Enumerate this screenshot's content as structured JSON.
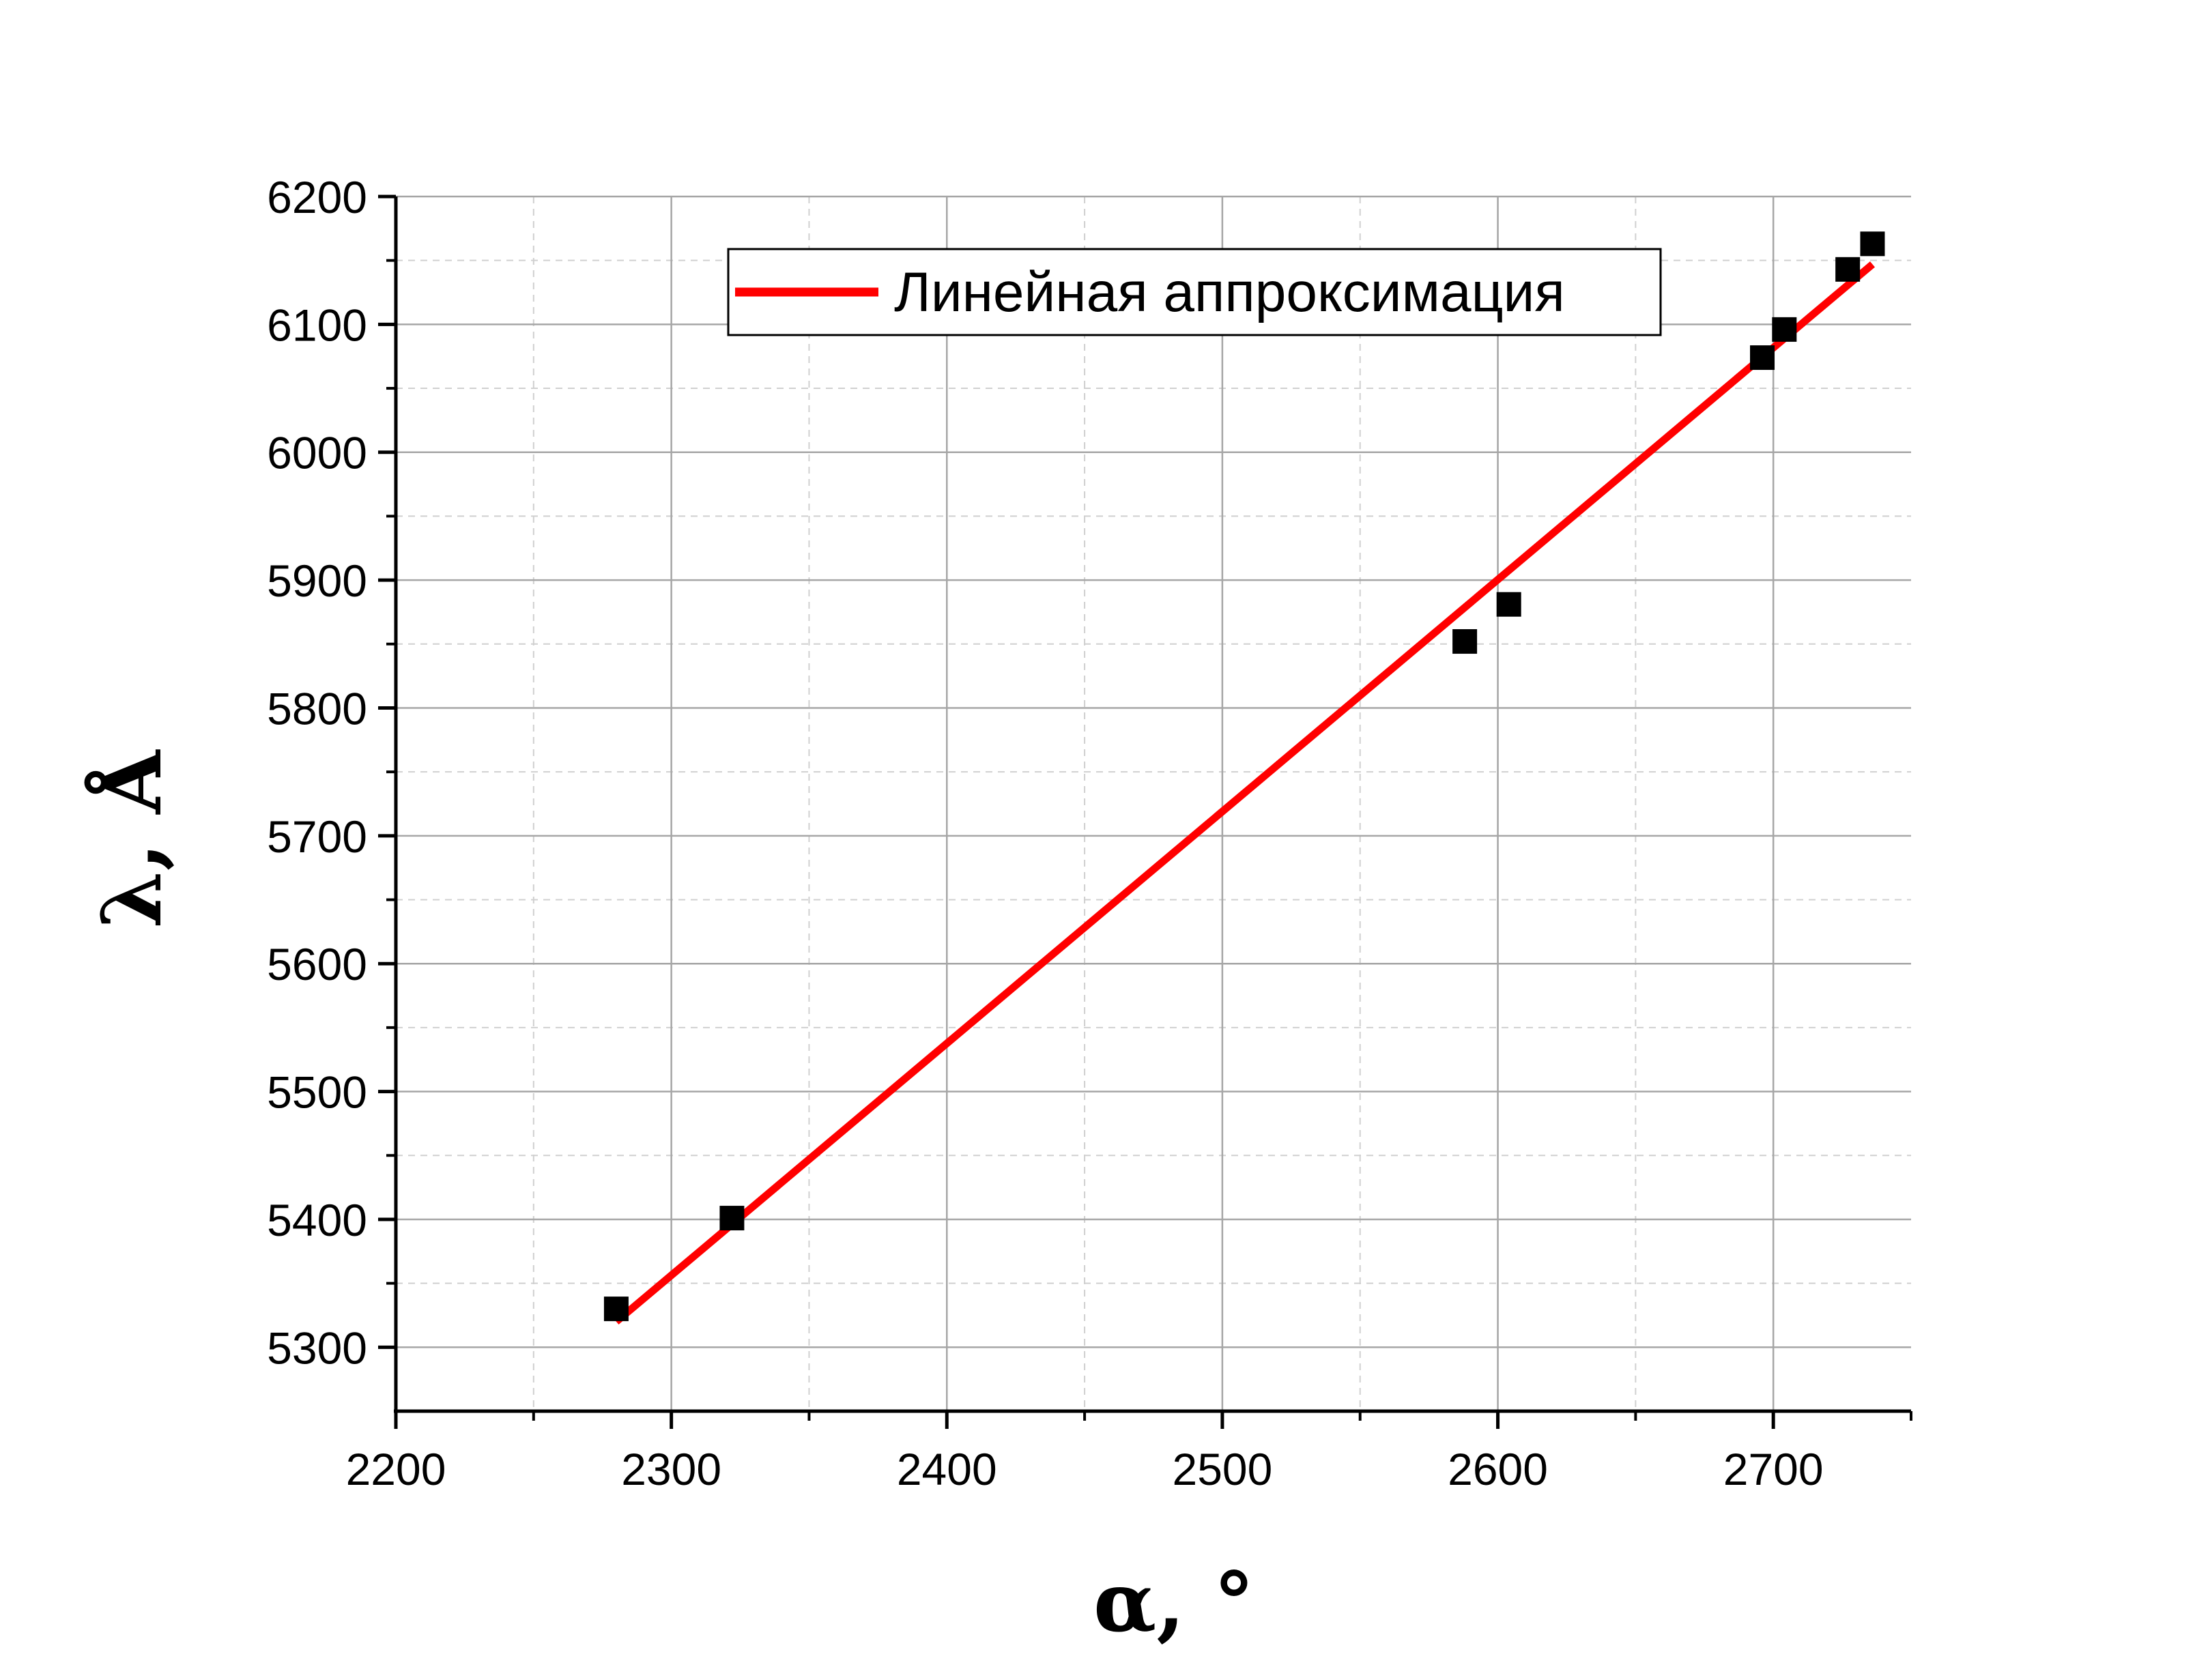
{
  "chart_data": {
    "type": "scatter",
    "title": "",
    "xlabel": "α, °",
    "ylabel": "λ, Å",
    "xlim": [
      2200,
      2750
    ],
    "ylim": [
      5250,
      6200
    ],
    "x_ticks": [
      2200,
      2300,
      2400,
      2500,
      2600,
      2700
    ],
    "y_ticks": [
      5300,
      5400,
      5500,
      5600,
      5700,
      5800,
      5900,
      6000,
      6100,
      6200
    ],
    "grid": true,
    "legend_position": "top-right",
    "series": [
      {
        "kind": "points",
        "color": "#000000",
        "marker": "square",
        "x": [
          2280,
          2322,
          2588,
          2604,
          2696,
          2704,
          2727,
          2736
        ],
        "y": [
          5330,
          5401,
          5852,
          5881,
          6074,
          6096,
          6143,
          6163
        ]
      },
      {
        "name": "Линейная аппроксимация",
        "kind": "line",
        "color": "#ff0000",
        "x": [
          2280,
          2736
        ],
        "y": [
          5320,
          6147
        ]
      }
    ]
  }
}
